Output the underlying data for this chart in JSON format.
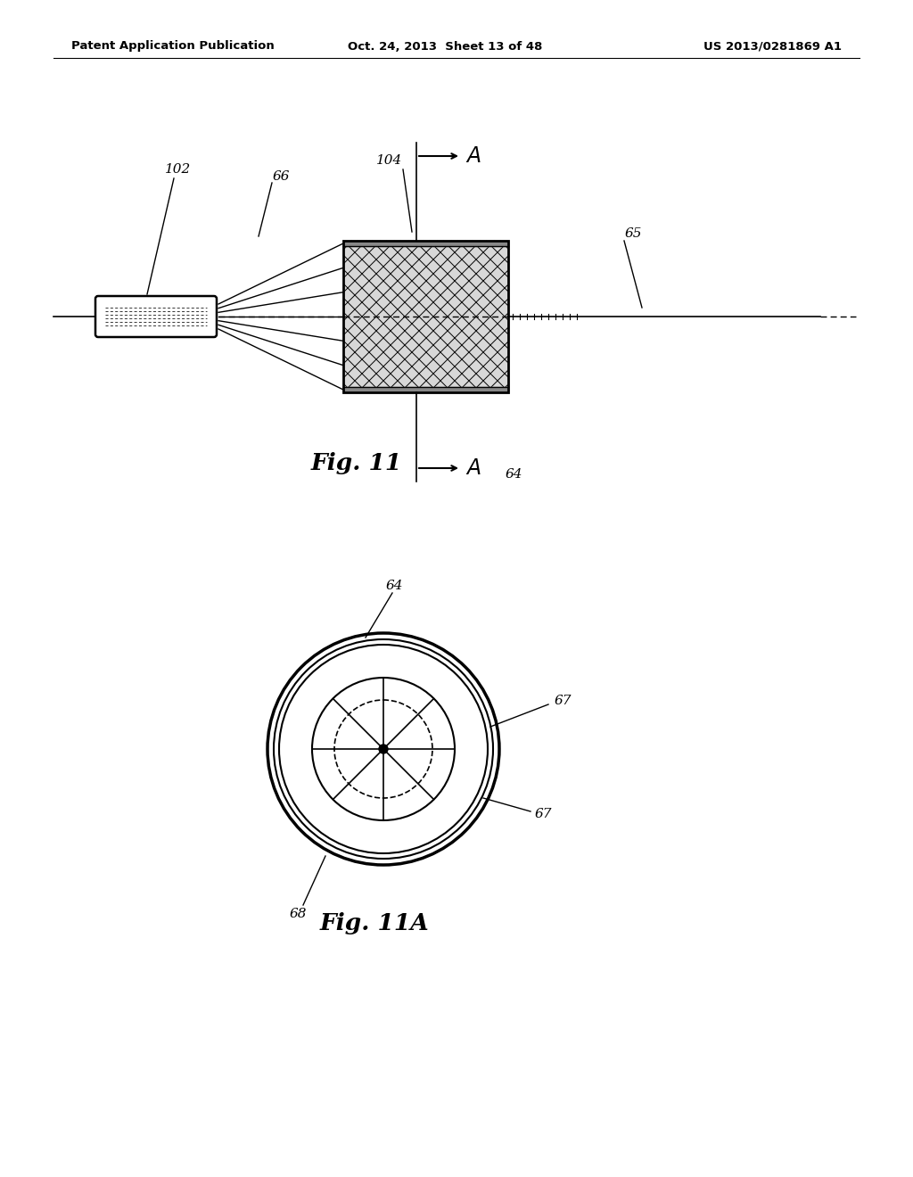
{
  "bg_color": "#ffffff",
  "header_left": "Patent Application Publication",
  "header_center": "Oct. 24, 2013  Sheet 13 of 48",
  "header_right": "US 2013/0281869 A1",
  "fig11_caption": "Fig. 11",
  "fig11a_caption": "Fig. 11A",
  "label_102": "102",
  "label_66": "66",
  "label_104": "104",
  "label_64_top": "64",
  "label_64_bottom": "64",
  "label_65": "65",
  "label_67a": "67",
  "label_67b": "67",
  "label_68": "68"
}
